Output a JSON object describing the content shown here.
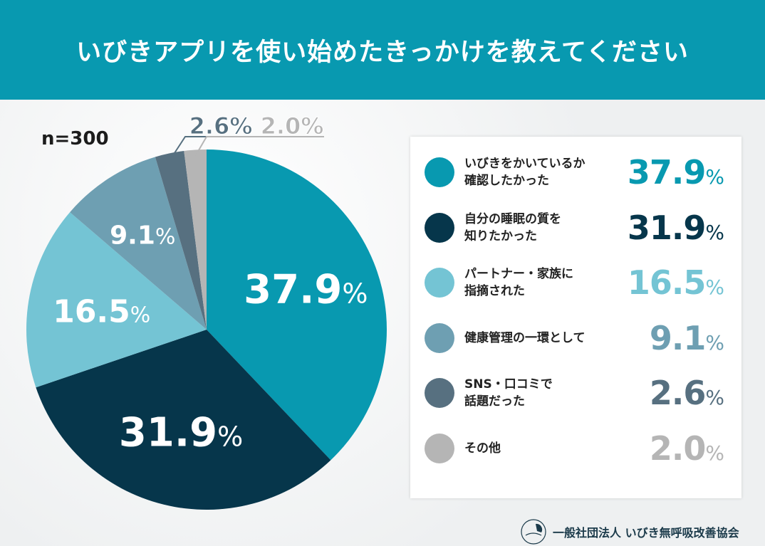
{
  "header": {
    "title": "いびきアプリを使い始めたきっかけを教えてください"
  },
  "sample": "n=300",
  "chart_data": {
    "type": "pie",
    "title": "いびきアプリを使い始めたきっかけを教えてください",
    "start": "top, clockwise",
    "slices": [
      {
        "label": "いびきをかいているか確認したかった",
        "line1": "いびきをかいているか",
        "line2": "確認したかった",
        "value": 37.9,
        "display": "37.9",
        "color": "#0899b0"
      },
      {
        "label": "自分の睡眠の質を知りたかった",
        "line1": "自分の睡眠の質を",
        "line2": "知りたかった",
        "value": 31.9,
        "display": "31.9",
        "color": "#06364b"
      },
      {
        "label": "パートナー・家族に指摘された",
        "line1": "パートナー・家族に",
        "line2": "指摘された",
        "value": 16.5,
        "display": "16.5",
        "color": "#74c4d4"
      },
      {
        "label": "健康管理の一環として",
        "line1": "健康管理の一環として",
        "line2": "",
        "value": 9.1,
        "display": "9.1",
        "color": "#6e9fb2"
      },
      {
        "label": "SNS・口コミで話題だった",
        "line1": "SNS・口コミで",
        "line2": "話題だった",
        "value": 2.6,
        "display": "2.6",
        "color": "#577080"
      },
      {
        "label": "その他",
        "line1": "その他",
        "line2": "",
        "value": 2.0,
        "display": "2.0",
        "color": "#b5b5b5"
      }
    ],
    "unit": "%"
  },
  "footer": {
    "org": "一般社団法人 いびき無呼吸改善協会"
  }
}
